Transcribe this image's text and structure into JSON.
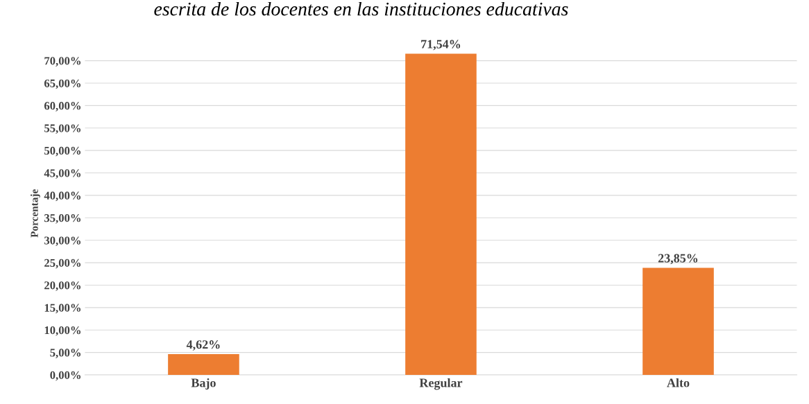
{
  "chart_data": {
    "type": "bar",
    "title": "escrita de los docentes en las instituciones educativas",
    "ylabel": "Porcentaje",
    "categories": [
      "Bajo",
      "Regular",
      "Alto"
    ],
    "values": [
      4.62,
      71.54,
      23.85
    ],
    "color": "#ed7d31",
    "value_labels": [
      "4,62%",
      "71,54%",
      "23,85%"
    ],
    "ylim": [
      0,
      72
    ],
    "yticks": [
      {
        "value": 0,
        "label": "0,00%"
      },
      {
        "value": 5,
        "label": "5,00%"
      },
      {
        "value": 10,
        "label": "10,00%"
      },
      {
        "value": 15,
        "label": "15,00%"
      },
      {
        "value": 20,
        "label": "20,00%"
      },
      {
        "value": 25,
        "label": "25,00%"
      },
      {
        "value": 30,
        "label": "30,00%"
      },
      {
        "value": 35,
        "label": "35,00%"
      },
      {
        "value": 40,
        "label": "40,00%"
      },
      {
        "value": 45,
        "label": "45,00%"
      },
      {
        "value": 50,
        "label": "50,00%"
      },
      {
        "value": 55,
        "label": "55,00%"
      },
      {
        "value": 60,
        "label": "60,00%"
      },
      {
        "value": 65,
        "label": "65,00%"
      },
      {
        "value": 70,
        "label": "70,00%"
      }
    ],
    "grid": "y"
  }
}
